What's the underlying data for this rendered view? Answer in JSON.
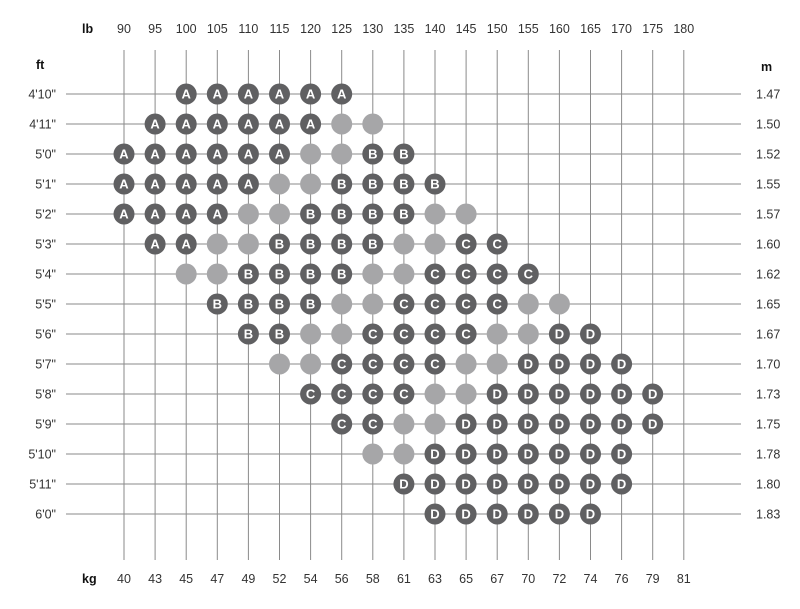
{
  "chart_data": {
    "type": "table",
    "top_axis_unit": "lb",
    "bottom_axis_unit": "kg",
    "left_axis_unit": "ft",
    "right_axis_unit": "m",
    "lb": [
      "90",
      "95",
      "100",
      "105",
      "110",
      "115",
      "120",
      "125",
      "130",
      "135",
      "140",
      "145",
      "150",
      "155",
      "160",
      "165",
      "170",
      "175",
      "180"
    ],
    "kg": [
      "40",
      "43",
      "45",
      "47",
      "49",
      "52",
      "54",
      "56",
      "58",
      "61",
      "63",
      "65",
      "67",
      "70",
      "72",
      "74",
      "76",
      "79",
      "81"
    ],
    "rows": [
      {
        "ft": "4'10\"",
        "m": "1.47",
        "cells": [
          null,
          null,
          "A",
          "A",
          "A",
          "A",
          "A",
          "A",
          null,
          null,
          null,
          null,
          null,
          null,
          null,
          null,
          null,
          null,
          null
        ]
      },
      {
        "ft": "4'11\"",
        "m": "1.50",
        "cells": [
          null,
          "A",
          "A",
          "A",
          "A",
          "A",
          "A",
          "",
          "",
          null,
          null,
          null,
          null,
          null,
          null,
          null,
          null,
          null,
          null
        ]
      },
      {
        "ft": "5'0\"",
        "m": "1.52",
        "cells": [
          "A",
          "A",
          "A",
          "A",
          "A",
          "A",
          "",
          "",
          "B",
          "B",
          null,
          null,
          null,
          null,
          null,
          null,
          null,
          null,
          null
        ]
      },
      {
        "ft": "5'1\"",
        "m": "1.55",
        "cells": [
          "A",
          "A",
          "A",
          "A",
          "A",
          "",
          "",
          "B",
          "B",
          "B",
          "B",
          null,
          null,
          null,
          null,
          null,
          null,
          null,
          null
        ]
      },
      {
        "ft": "5'2\"",
        "m": "1.57",
        "cells": [
          "A",
          "A",
          "A",
          "A",
          "",
          "",
          "B",
          "B",
          "B",
          "B",
          "",
          "",
          null,
          null,
          null,
          null,
          null,
          null,
          null
        ]
      },
      {
        "ft": "5'3\"",
        "m": "1.60",
        "cells": [
          null,
          "A",
          "A",
          "",
          "",
          "B",
          "B",
          "B",
          "B",
          "",
          "",
          "C",
          "C",
          null,
          null,
          null,
          null,
          null,
          null
        ]
      },
      {
        "ft": "5'4\"",
        "m": "1.62",
        "cells": [
          null,
          null,
          "",
          "",
          "B",
          "B",
          "B",
          "B",
          "",
          "",
          "C",
          "C",
          "C",
          "C",
          null,
          null,
          null,
          null,
          null
        ]
      },
      {
        "ft": "5'5\"",
        "m": "1.65",
        "cells": [
          null,
          null,
          null,
          "B",
          "B",
          "B",
          "B",
          "",
          "",
          "C",
          "C",
          "C",
          "C",
          "",
          "",
          null,
          null,
          null,
          null
        ]
      },
      {
        "ft": "5'6\"",
        "m": "1.67",
        "cells": [
          null,
          null,
          null,
          null,
          "B",
          "B",
          "",
          "",
          "C",
          "C",
          "C",
          "C",
          "",
          "",
          "D",
          "D",
          null,
          null,
          null
        ]
      },
      {
        "ft": "5'7\"",
        "m": "1.70",
        "cells": [
          null,
          null,
          null,
          null,
          null,
          "",
          "",
          "C",
          "C",
          "C",
          "C",
          "",
          "",
          "D",
          "D",
          "D",
          "D",
          null,
          null
        ]
      },
      {
        "ft": "5'8\"",
        "m": "1.73",
        "cells": [
          null,
          null,
          null,
          null,
          null,
          null,
          "C",
          "C",
          "C",
          "C",
          "",
          "",
          "D",
          "D",
          "D",
          "D",
          "D",
          "D",
          null
        ]
      },
      {
        "ft": "5'9\"",
        "m": "1.75",
        "cells": [
          null,
          null,
          null,
          null,
          null,
          null,
          null,
          "C",
          "C",
          "",
          "",
          "D",
          "D",
          "D",
          "D",
          "D",
          "D",
          "D",
          null
        ]
      },
      {
        "ft": "5'10\"",
        "m": "1.78",
        "cells": [
          null,
          null,
          null,
          null,
          null,
          null,
          null,
          null,
          "",
          "",
          "D",
          "D",
          "D",
          "D",
          "D",
          "D",
          "D",
          null,
          null
        ]
      },
      {
        "ft": "5'11\"",
        "m": "1.80",
        "cells": [
          null,
          null,
          null,
          null,
          null,
          null,
          null,
          null,
          null,
          "D",
          "D",
          "D",
          "D",
          "D",
          "D",
          "D",
          "D",
          null,
          null
        ]
      },
      {
        "ft": "6'0\"",
        "m": "1.83",
        "cells": [
          null,
          null,
          null,
          null,
          null,
          null,
          null,
          null,
          null,
          null,
          "D",
          "D",
          "D",
          "D",
          "D",
          "D",
          null,
          null,
          null
        ]
      }
    ],
    "colors": {
      "letter_dot": "#606062",
      "blank_dot": "#a6a6a8",
      "grid": "#8a8a8a",
      "letter": "#ffffff"
    },
    "grid": true
  }
}
